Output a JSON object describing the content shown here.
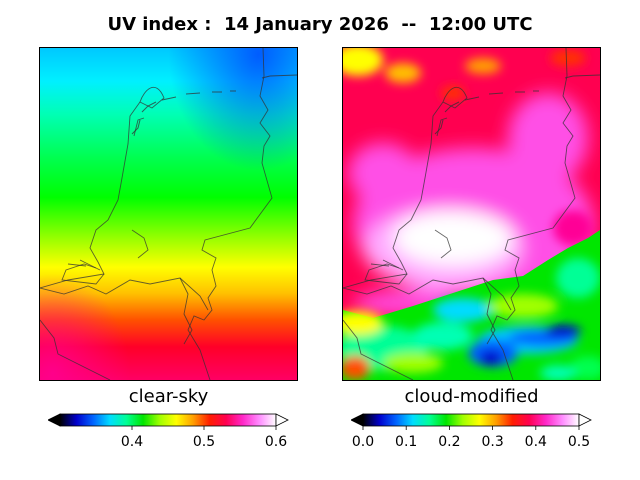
{
  "title": "UV index :  14 January 2026  --  12:00 UTC",
  "panels": [
    {
      "name": "clear-sky",
      "label": "clear-sky",
      "colorbar": {
        "min": 0.3,
        "max": 0.6,
        "ticks": [
          0.4,
          0.5,
          0.6
        ],
        "tick_labels": [
          "0.4",
          "0.5",
          "0.6"
        ],
        "extend": "both"
      }
    },
    {
      "name": "cloud-modified",
      "label": "cloud-modified",
      "colorbar": {
        "min": 0.0,
        "max": 0.5,
        "ticks": [
          0.0,
          0.1,
          0.2,
          0.3,
          0.4,
          0.5
        ],
        "tick_labels": [
          "0.0",
          "0.1",
          "0.2",
          "0.3",
          "0.4",
          "0.5"
        ],
        "extend": "both"
      }
    }
  ],
  "colormap": [
    "#000000",
    "#0000cd",
    "#0064ff",
    "#00dcff",
    "#00ff96",
    "#00e600",
    "#a0ff00",
    "#ffff00",
    "#ffa000",
    "#ff1e00",
    "#ff0050",
    "#ff28c8",
    "#ff8cff",
    "#ffffff"
  ]
}
